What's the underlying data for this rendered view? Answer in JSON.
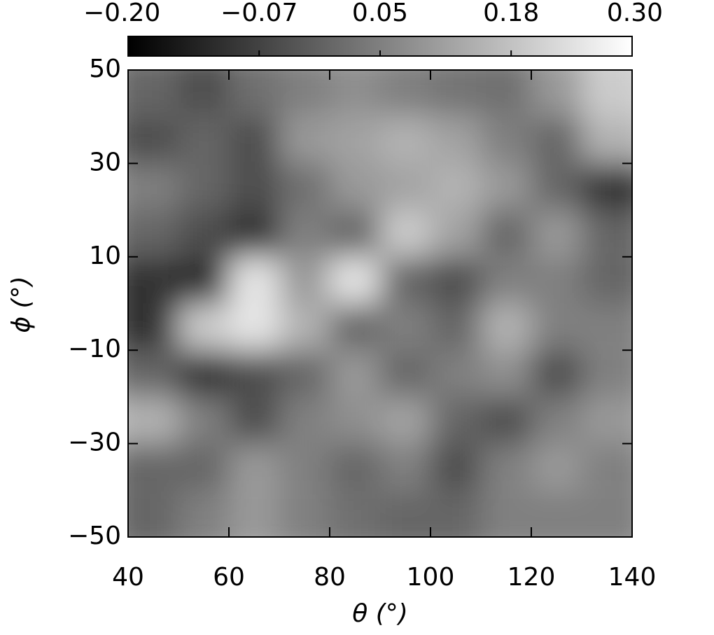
{
  "chart_data": {
    "type": "heatmap",
    "xlabel": "θ (°)",
    "ylabel": "ϕ (°)",
    "x": [
      45,
      55,
      65,
      75,
      85,
      95,
      105,
      115,
      125,
      135
    ],
    "y": [
      45,
      35,
      25,
      15,
      5,
      -5,
      -15,
      -25,
      -35,
      -45
    ],
    "z": [
      [
        0.0,
        -0.05,
        0.02,
        0.05,
        0.08,
        0.05,
        0.03,
        0.02,
        0.1,
        0.2
      ],
      [
        -0.05,
        0.0,
        -0.05,
        0.1,
        0.12,
        0.15,
        0.12,
        0.05,
        0.0,
        0.15
      ],
      [
        0.05,
        0.0,
        -0.05,
        0.02,
        0.1,
        0.12,
        0.15,
        0.1,
        0.0,
        -0.1
      ],
      [
        0.0,
        -0.05,
        -0.1,
        0.05,
        0.0,
        0.2,
        0.12,
        0.0,
        0.1,
        0.0
      ],
      [
        -0.1,
        -0.12,
        0.25,
        0.1,
        0.25,
        0.0,
        -0.05,
        0.05,
        0.05,
        0.0
      ],
      [
        -0.1,
        0.2,
        0.25,
        0.15,
        0.0,
        0.05,
        0.0,
        0.15,
        0.05,
        0.05
      ],
      [
        0.0,
        -0.1,
        -0.05,
        0.0,
        0.1,
        0.0,
        0.05,
        0.08,
        -0.05,
        0.05
      ],
      [
        0.15,
        0.05,
        -0.05,
        0.05,
        0.08,
        0.12,
        0.0,
        -0.05,
        0.05,
        0.1
      ],
      [
        0.0,
        0.0,
        0.1,
        0.05,
        0.0,
        0.05,
        -0.05,
        0.05,
        0.1,
        0.05
      ],
      [
        0.0,
        0.05,
        0.1,
        0.05,
        0.02,
        0.0,
        0.0,
        0.05,
        0.05,
        0.05
      ]
    ],
    "xlim": [
      40,
      140
    ],
    "xticks": [
      40,
      60,
      80,
      100,
      120,
      140
    ],
    "ylim": [
      -50,
      50
    ],
    "yticks": [
      {
        "value": -50,
        "label": "−50"
      },
      {
        "value": -30,
        "label": "−30"
      },
      {
        "value": -10,
        "label": "−10"
      },
      10,
      30,
      50
    ],
    "zlim": [
      -0.2,
      0.3
    ],
    "zticks": [
      {
        "value": -0.2,
        "label": "−0.20"
      },
      {
        "value": -0.07,
        "label": "−0.07"
      },
      {
        "value": 0.05,
        "label": "0.05"
      },
      {
        "value": 0.18,
        "label": "0.18"
      },
      {
        "value": 0.3,
        "label": "0.30"
      }
    ]
  }
}
